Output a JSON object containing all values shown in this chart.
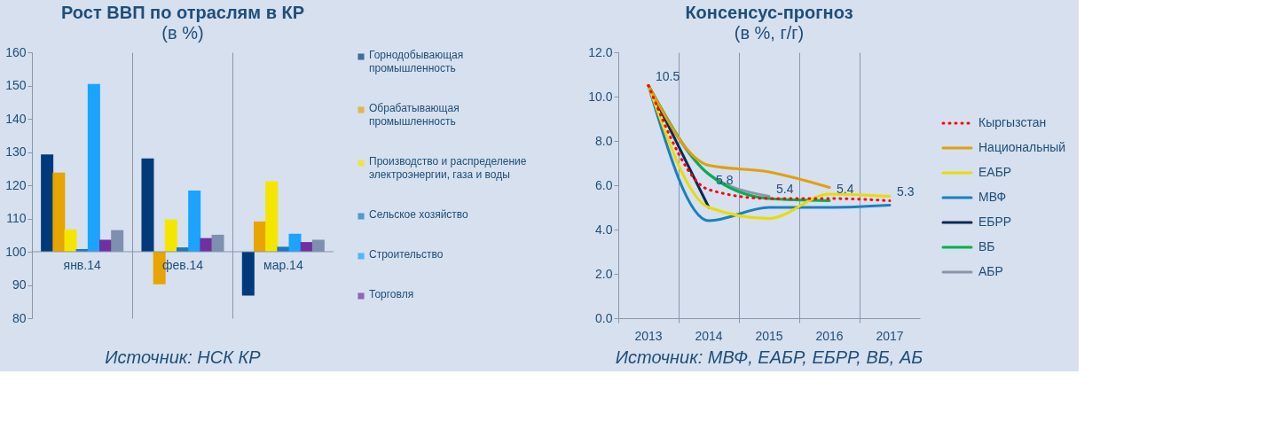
{
  "chart_data": [
    {
      "type": "bar",
      "title": "Рост ВВП по отраслям в КР",
      "subtitle": "(в %)",
      "categories": [
        "янв.14",
        "фев.14",
        "мар.14"
      ],
      "series": [
        {
          "name": "Горнодобывающая промышленность",
          "color": "#003a7a",
          "base": [
            100,
            100,
            100
          ],
          "values": [
            29.3,
            28.1,
            -13.2
          ]
        },
        {
          "name": "Обрабатывающая промышленность",
          "color": "#e8a400",
          "base": [
            100,
            100,
            100
          ],
          "values": [
            23.8,
            -9.8,
            9.1
          ]
        },
        {
          "name": "Производство и распределение электроэнергии, газа и воды",
          "color": "#f5e600",
          "base": [
            100,
            100,
            100
          ],
          "values": [
            6.7,
            9.7,
            21.2
          ]
        },
        {
          "name": "Сельское хозяйство",
          "color": "#1a7ac0",
          "base": [
            100,
            100,
            100
          ],
          "values": [
            0.8,
            1.3,
            1.5
          ]
        },
        {
          "name": "Строительство",
          "color": "#1aa3ff",
          "base": [
            100,
            100,
            100
          ],
          "values": [
            50.5,
            18.4,
            5.4
          ]
        },
        {
          "name": "Торговля",
          "color": "#7030a0",
          "base": [
            100,
            100,
            100
          ],
          "values": [
            3.6,
            4.1,
            2.9
          ]
        },
        {
          "color": "#7f8faf",
          "base": [
            100,
            100,
            100
          ],
          "values": [
            6.5,
            5.1,
            3.6
          ]
        }
      ],
      "ylim": [
        80,
        160
      ],
      "yticks": [
        80,
        90,
        100,
        110,
        120,
        130,
        140,
        150,
        160
      ],
      "grid": "x",
      "legend": "right",
      "annotations": [
        "Источник: НСК КР"
      ]
    },
    {
      "type": "line",
      "title": "Консенсус-прогноз",
      "subtitle": "(в %, г/г)",
      "categories": [
        "2013",
        "2014",
        "2015",
        "2016",
        "2017"
      ],
      "series": [
        {
          "name": "Кыргызстан",
          "color": "#ff0000",
          "line_style": "dotted",
          "values": [
            10.5,
            5.8,
            5.4,
            5.4,
            5.3
          ],
          "value_labels": [
            "10.5",
            "5.8",
            "5.4",
            "5.4",
            "5.3"
          ]
        },
        {
          "name": "Национальный",
          "color": "#e0a010",
          "values": [
            10.5,
            6.9,
            6.6,
            5.9,
            null
          ]
        },
        {
          "name": "ЕАБР",
          "color": "#e8dc00",
          "values": [
            10.5,
            5.0,
            4.5,
            5.6,
            5.5
          ]
        },
        {
          "name": "МВФ",
          "color": "#1a80c0",
          "values": [
            10.5,
            4.4,
            5.0,
            5.0,
            5.1
          ]
        },
        {
          "name": "ЕБРР",
          "color": "#0a2a55",
          "values": [
            10.5,
            5.0,
            null,
            null,
            null
          ]
        },
        {
          "name": "ВБ",
          "color": "#00b050",
          "values": [
            10.5,
            6.5,
            5.4,
            5.3,
            null
          ]
        },
        {
          "name": "АБР",
          "color": "#8a96ac",
          "values": [
            10.5,
            6.5,
            5.5,
            null,
            null
          ]
        }
      ],
      "ylim": [
        0,
        12
      ],
      "yticks": [
        {
          "value": 0,
          "label": "0.0"
        },
        {
          "value": 2,
          "label": "2.0"
        },
        {
          "value": 4,
          "label": "4.0"
        },
        {
          "value": 6,
          "label": "6.0"
        },
        {
          "value": 8,
          "label": "8.0"
        },
        {
          "value": 10,
          "label": "10.0"
        },
        {
          "value": 12,
          "label": "12.0"
        }
      ],
      "grid": "x",
      "legend": "right",
      "marker": "none",
      "line_style": "solid",
      "annotations": [
        "Источник: МВФ, ЕАБР, ЕБРР, ВБ, АБ"
      ]
    }
  ]
}
